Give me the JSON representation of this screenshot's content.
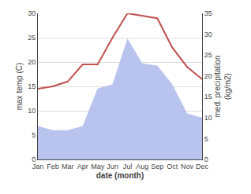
{
  "chart_data": {
    "type": "line",
    "xlabel": "date (month)",
    "ylabel": "max temp (C)",
    "y2label": "med. precipitation\n(kg/m2)",
    "categories": [
      "Jan",
      "Feb",
      "Mar",
      "Apr",
      "May",
      "Jun",
      "Jul",
      "Aug",
      "Sep",
      "Oct",
      "Nov",
      "Dec"
    ],
    "series": [
      {
        "type": "area",
        "axis": "y2",
        "color": "#b8c4ee",
        "values": [
          8.0,
          7.0,
          7.0,
          8.0,
          17.0,
          18.0,
          29.0,
          23.0,
          22.5,
          18.0,
          11.0,
          10.0
        ]
      },
      {
        "type": "line",
        "color": "#c0504d",
        "values": [
          14.5,
          15.0,
          16.0,
          19.5,
          19.5,
          25.0,
          30.0,
          29.5,
          29.0,
          23.0,
          19.0,
          16.5
        ]
      }
    ],
    "ylim": [
      0,
      30
    ],
    "yticks": [
      0,
      5,
      10,
      15,
      20,
      25,
      30
    ],
    "y2lim": [
      0,
      35
    ],
    "y2ticks": [
      0,
      5,
      10,
      15,
      20,
      25,
      30,
      35
    ],
    "grid": true
  }
}
